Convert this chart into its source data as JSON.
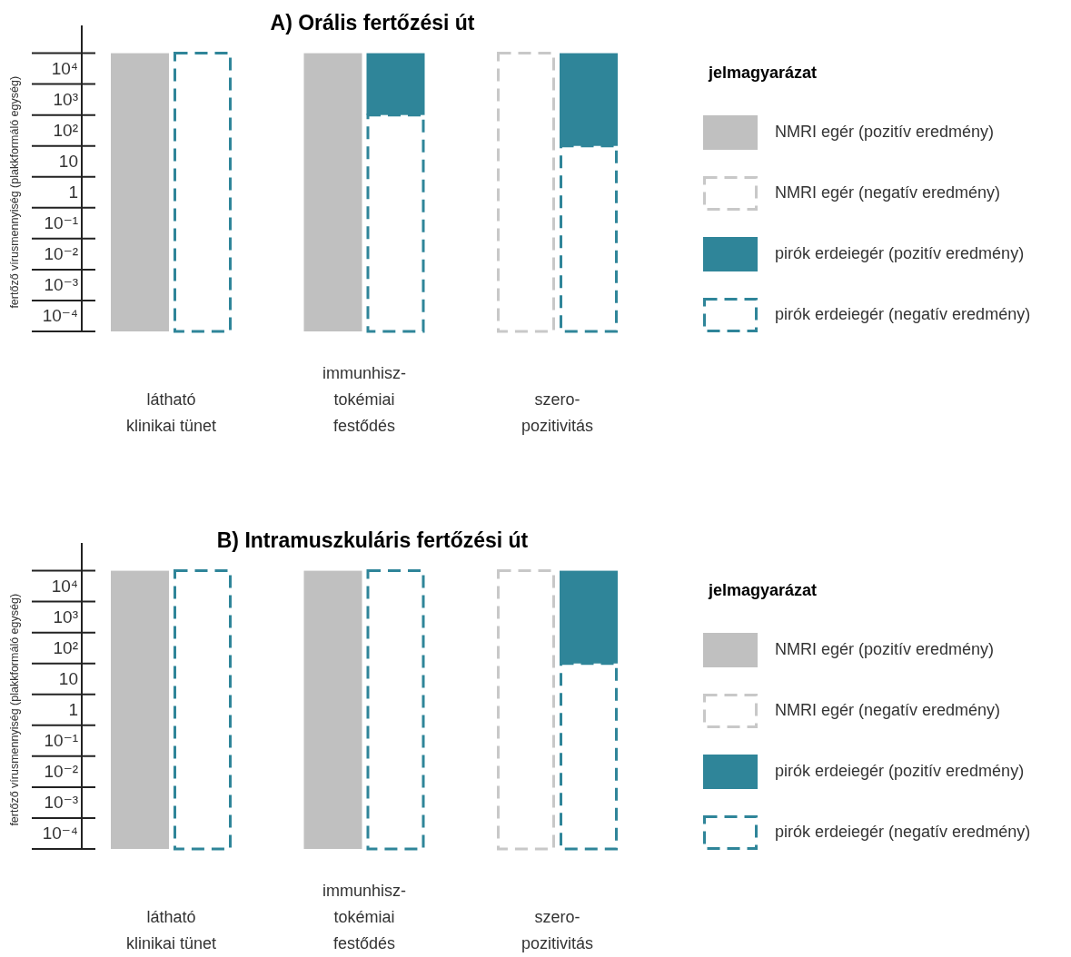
{
  "chart_data": [
    {
      "type": "bar",
      "title": "A) Orális fertőzési út",
      "ylabel": "fertőző vírusmennyiség (plakkformáló egység)",
      "legend_title": "jelmagyarázat",
      "legend": "right",
      "log": "y",
      "categories": [
        "látható\nklinikai tünet",
        "immunhisz-\ntokémiai\nfestődés",
        "szero-\npozitivitás"
      ],
      "ylim": [
        3.16e-05,
        250000
      ],
      "yticks": [
        {
          "value": 10000,
          "label": "10⁴"
        },
        {
          "value": 1000,
          "label": "10³"
        },
        {
          "value": 100,
          "label": "10²"
        },
        {
          "value": 10,
          "label": "10"
        },
        {
          "value": 1,
          "label": "1"
        },
        {
          "value": 0.1,
          "label": "10⁻¹"
        },
        {
          "value": 0.01,
          "label": "10⁻²"
        },
        {
          "value": 0.001,
          "label": "10⁻³"
        },
        {
          "value": 0.0001,
          "label": "10⁻⁴"
        }
      ],
      "series": [
        {
          "name": "NMRI egér (pozitív eredmény)",
          "color": "#c0c0c0",
          "base": [
            3.16e-05,
            3.16e-05,
            null
          ],
          "values": [
            31623,
            31623,
            null
          ]
        },
        {
          "name": "NMRI egér (negatív eredmény)",
          "color": "#c8c8c8",
          "line_style": "dashed",
          "base": [
            null,
            null,
            3.16e-05
          ],
          "values": [
            null,
            null,
            31623
          ]
        },
        {
          "name": "pirók erdeiegér (pozitív eredmény)",
          "color": "#2f8599",
          "base": [
            null,
            316,
            31.6
          ],
          "values": [
            null,
            31307,
            31591
          ]
        },
        {
          "name": "pirók erdeiegér (negatív eredmény)",
          "color": "#2f8599",
          "line_style": "dashed",
          "base": [
            3.16e-05,
            3.16e-05,
            3.16e-05
          ],
          "values": [
            31623,
            316,
            31.6
          ]
        }
      ]
    },
    {
      "type": "bar",
      "title": "B) Intramuszkuláris fertőzési út",
      "ylabel": "fertőző vírusmennyiség (plakkformáló egység)",
      "legend_title": "jelmagyarázat",
      "legend": "right",
      "log": "y",
      "categories": [
        "látható\nklinikai tünet",
        "immunhisz-\ntokémiai\nfestődés",
        "szero-\npozitivitás"
      ],
      "ylim": [
        3.16e-05,
        250000
      ],
      "yticks": [
        {
          "value": 10000,
          "label": "10⁴"
        },
        {
          "value": 1000,
          "label": "10³"
        },
        {
          "value": 100,
          "label": "10²"
        },
        {
          "value": 10,
          "label": "10"
        },
        {
          "value": 1,
          "label": "1"
        },
        {
          "value": 0.1,
          "label": "10⁻¹"
        },
        {
          "value": 0.01,
          "label": "10⁻²"
        },
        {
          "value": 0.001,
          "label": "10⁻³"
        },
        {
          "value": 0.0001,
          "label": "10⁻⁴"
        }
      ],
      "series": [
        {
          "name": "NMRI egér (pozitív eredmény)",
          "color": "#c0c0c0",
          "base": [
            3.16e-05,
            3.16e-05,
            null
          ],
          "values": [
            31623,
            31623,
            null
          ]
        },
        {
          "name": "NMRI egér (negatív eredmény)",
          "color": "#c8c8c8",
          "line_style": "dashed",
          "base": [
            null,
            null,
            3.16e-05
          ],
          "values": [
            null,
            null,
            31623
          ]
        },
        {
          "name": "pirók erdeiegér (pozitív eredmény)",
          "color": "#2f8599",
          "base": [
            null,
            null,
            31.6
          ],
          "values": [
            null,
            null,
            31591
          ]
        },
        {
          "name": "pirók erdeiegér (negatív eredmény)",
          "color": "#2f8599",
          "line_style": "dashed",
          "base": [
            3.16e-05,
            3.16e-05,
            3.16e-05
          ],
          "values": [
            31623,
            31623,
            31.6
          ]
        }
      ]
    }
  ]
}
